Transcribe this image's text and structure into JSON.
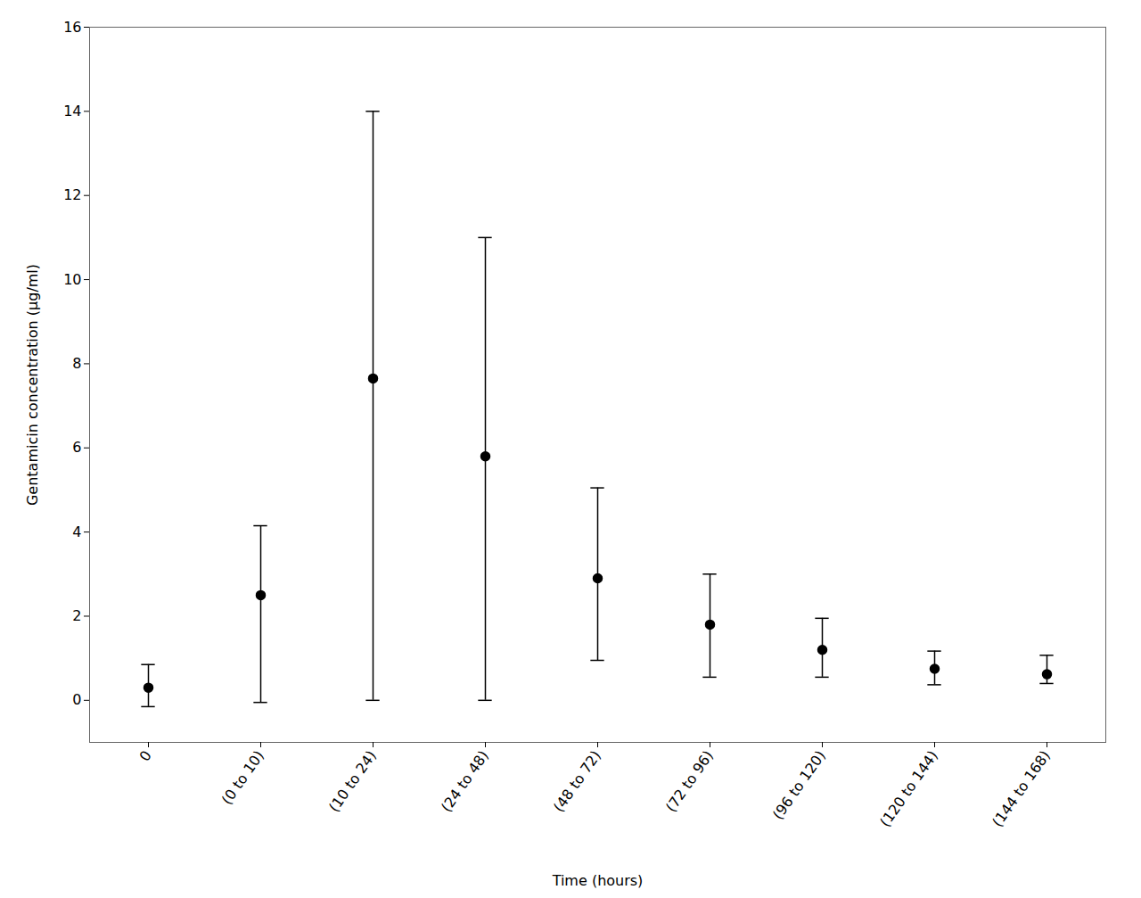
{
  "chart_data": {
    "type": "errorbar",
    "xlabel": "Time (hours)",
    "ylabel": "Gentamicin concentration (µg/ml)",
    "categories": [
      "0",
      "(0 to 10)",
      "(10 to 24)",
      "(24 to 48)",
      "(48 to 72)",
      "(72 to 96)",
      "(96 to 120)",
      "(120 to 144)",
      "(144 to 168)"
    ],
    "values": [
      0.3,
      2.5,
      7.65,
      5.8,
      2.9,
      1.8,
      1.2,
      0.75,
      0.62
    ],
    "error_upper": [
      0.55,
      1.65,
      6.35,
      5.2,
      2.15,
      1.2,
      0.75,
      0.42,
      0.45
    ],
    "error_lower": [
      0.45,
      2.55,
      7.65,
      5.8,
      1.95,
      1.25,
      0.65,
      0.38,
      0.22
    ],
    "color": "#000000",
    "marker": "circle",
    "grid": false,
    "ylim": [
      -1.0,
      16
    ],
    "yticks": [
      0,
      2,
      4,
      6,
      8,
      10,
      12,
      14,
      16
    ]
  }
}
